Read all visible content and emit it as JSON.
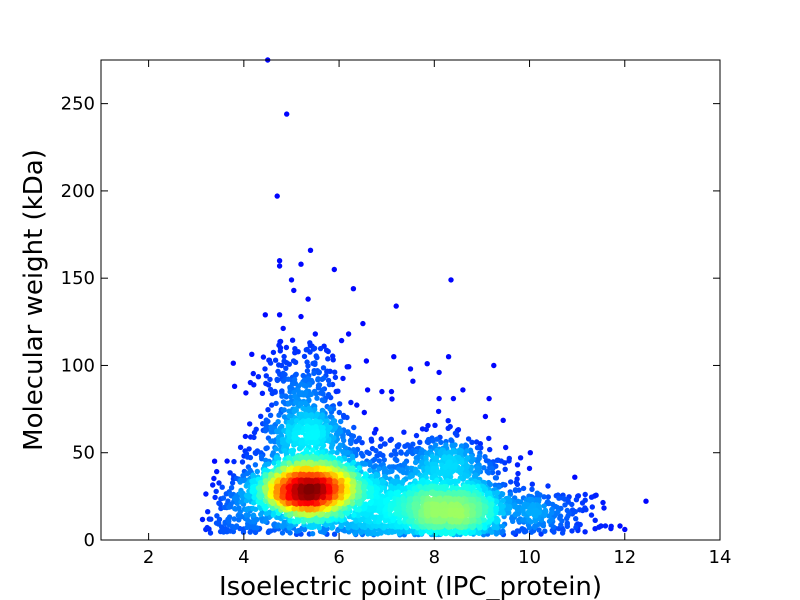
{
  "chart_data": {
    "type": "scatter",
    "style": "density-colored scatter (jet colormap)",
    "xlabel": "Isoelectric point (IPC_protein)",
    "ylabel": "Molecular weight (kDa)",
    "xlim": [
      1,
      14
    ],
    "ylim": [
      0,
      275
    ],
    "xticks": [
      2,
      4,
      6,
      8,
      10,
      12,
      14
    ],
    "yticks": [
      0,
      50,
      100,
      150,
      200,
      250
    ],
    "grid": false,
    "legend": "none",
    "colormap": [
      "#00007f",
      "#0000ff",
      "#0080ff",
      "#00e0ff",
      "#40ffb0",
      "#b0ff40",
      "#ffe000",
      "#ff7000",
      "#ff1000",
      "#8b0000"
    ],
    "clusters": [
      {
        "center_x": 5.3,
        "center_y": 29,
        "peak_density": "high"
      },
      {
        "center_x": 8.3,
        "center_y": 18,
        "peak_density": "medium"
      }
    ],
    "outliers": [
      {
        "x": 4.5,
        "y": 275
      },
      {
        "x": 4.9,
        "y": 244
      },
      {
        "x": 4.7,
        "y": 197
      },
      {
        "x": 5.4,
        "y": 166
      },
      {
        "x": 4.75,
        "y": 160
      },
      {
        "x": 4.75,
        "y": 157
      },
      {
        "x": 5.2,
        "y": 158
      },
      {
        "x": 5.9,
        "y": 155
      },
      {
        "x": 5.0,
        "y": 149
      },
      {
        "x": 8.35,
        "y": 149
      },
      {
        "x": 5.05,
        "y": 143
      },
      {
        "x": 6.3,
        "y": 144
      },
      {
        "x": 5.35,
        "y": 138
      },
      {
        "x": 7.2,
        "y": 134
      },
      {
        "x": 4.45,
        "y": 129
      },
      {
        "x": 4.75,
        "y": 129
      },
      {
        "x": 5.2,
        "y": 128
      },
      {
        "x": 6.5,
        "y": 124
      },
      {
        "x": 6.2,
        "y": 118
      },
      {
        "x": 5.5,
        "y": 118
      },
      {
        "x": 7.15,
        "y": 105
      },
      {
        "x": 8.3,
        "y": 105
      },
      {
        "x": 9.25,
        "y": 100
      },
      {
        "x": 7.5,
        "y": 98
      },
      {
        "x": 7.85,
        "y": 101
      },
      {
        "x": 8.1,
        "y": 96
      },
      {
        "x": 7.55,
        "y": 91
      },
      {
        "x": 6.6,
        "y": 86
      },
      {
        "x": 6.9,
        "y": 85
      },
      {
        "x": 7.1,
        "y": 85
      },
      {
        "x": 8.6,
        "y": 86
      },
      {
        "x": 9.15,
        "y": 81
      },
      {
        "x": 8.1,
        "y": 81
      },
      {
        "x": 4.55,
        "y": 92
      },
      {
        "x": 9.5,
        "y": 53
      },
      {
        "x": 10.0,
        "y": 41
      },
      {
        "x": 10.95,
        "y": 36
      },
      {
        "x": 11.9,
        "y": 8
      },
      {
        "x": 12.0,
        "y": 6
      },
      {
        "x": 11.5,
        "y": 8
      },
      {
        "x": 3.2,
        "y": 6
      },
      {
        "x": 3.3,
        "y": 4
      }
    ]
  }
}
